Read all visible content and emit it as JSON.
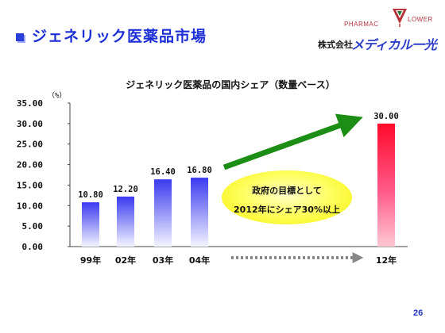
{
  "header": {
    "title": "ジェネリック医薬品市場"
  },
  "logo": {
    "pharma_text": "PHARMAC",
    "flower_text": "LOWER",
    "company_prefix": "株式会社",
    "brand_text": "メディカル一光"
  },
  "chart_data": {
    "type": "bar",
    "title": "ジェネリック医薬品の国内シェア（数量ベース）",
    "ylabel": "（%）",
    "xlabel": "",
    "categories": [
      "99年",
      "02年",
      "03年",
      "04年",
      "12年"
    ],
    "values": [
      10.8,
      12.2,
      16.4,
      16.8,
      30.0
    ],
    "value_labels": [
      "10.80",
      "12.20",
      "16.40",
      "16.80",
      "30.00"
    ],
    "ylim": [
      0,
      35
    ],
    "yticks": [
      "0.00",
      "5.00",
      "10.00",
      "15.00",
      "20.00",
      "25.00",
      "30.00",
      "35.00"
    ],
    "grid": false,
    "legend": "none",
    "bar_color_top": "#3a3af0",
    "bar_color_bottom": "#f4f4ff",
    "target_bar_color_top": "#ff0a2a",
    "target_bar_color_bottom": "#ffc8d2",
    "trend_arrow_color": "#1c8e16",
    "gap_arrow_color": "#888888"
  },
  "callout": {
    "line1": "政府の目標として",
    "line2": "2012年にシェア30%以上"
  },
  "footer": {
    "page_number": "26"
  }
}
